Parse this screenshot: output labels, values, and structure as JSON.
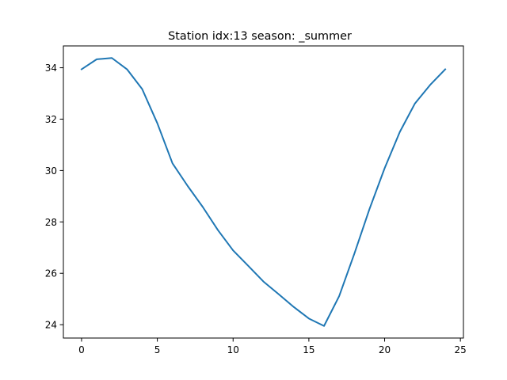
{
  "chart_data": {
    "type": "line",
    "title": "Station idx:13 season: _summer",
    "xlabel": "",
    "ylabel": "",
    "xlim": [
      -1.2,
      25.2
    ],
    "ylim": [
      23.48,
      34.85
    ],
    "x_ticks": [
      0,
      5,
      10,
      15,
      20,
      25
    ],
    "y_ticks": [
      24,
      26,
      28,
      30,
      32,
      34
    ],
    "grid": false,
    "series": [
      {
        "color": "#1f77b4",
        "x": [
          0,
          1,
          2,
          3,
          4,
          5,
          6,
          7,
          8,
          9,
          10,
          11,
          12,
          13,
          14,
          15,
          16,
          17,
          18,
          19,
          20,
          21,
          22,
          23,
          24
        ],
        "y": [
          33.94,
          34.33,
          34.38,
          33.94,
          33.17,
          31.84,
          30.28,
          29.4,
          28.58,
          27.68,
          26.89,
          26.29,
          25.68,
          25.19,
          24.69,
          24.24,
          23.95,
          25.11,
          26.76,
          28.5,
          30.09,
          31.5,
          32.61,
          33.33,
          33.94
        ]
      }
    ]
  }
}
